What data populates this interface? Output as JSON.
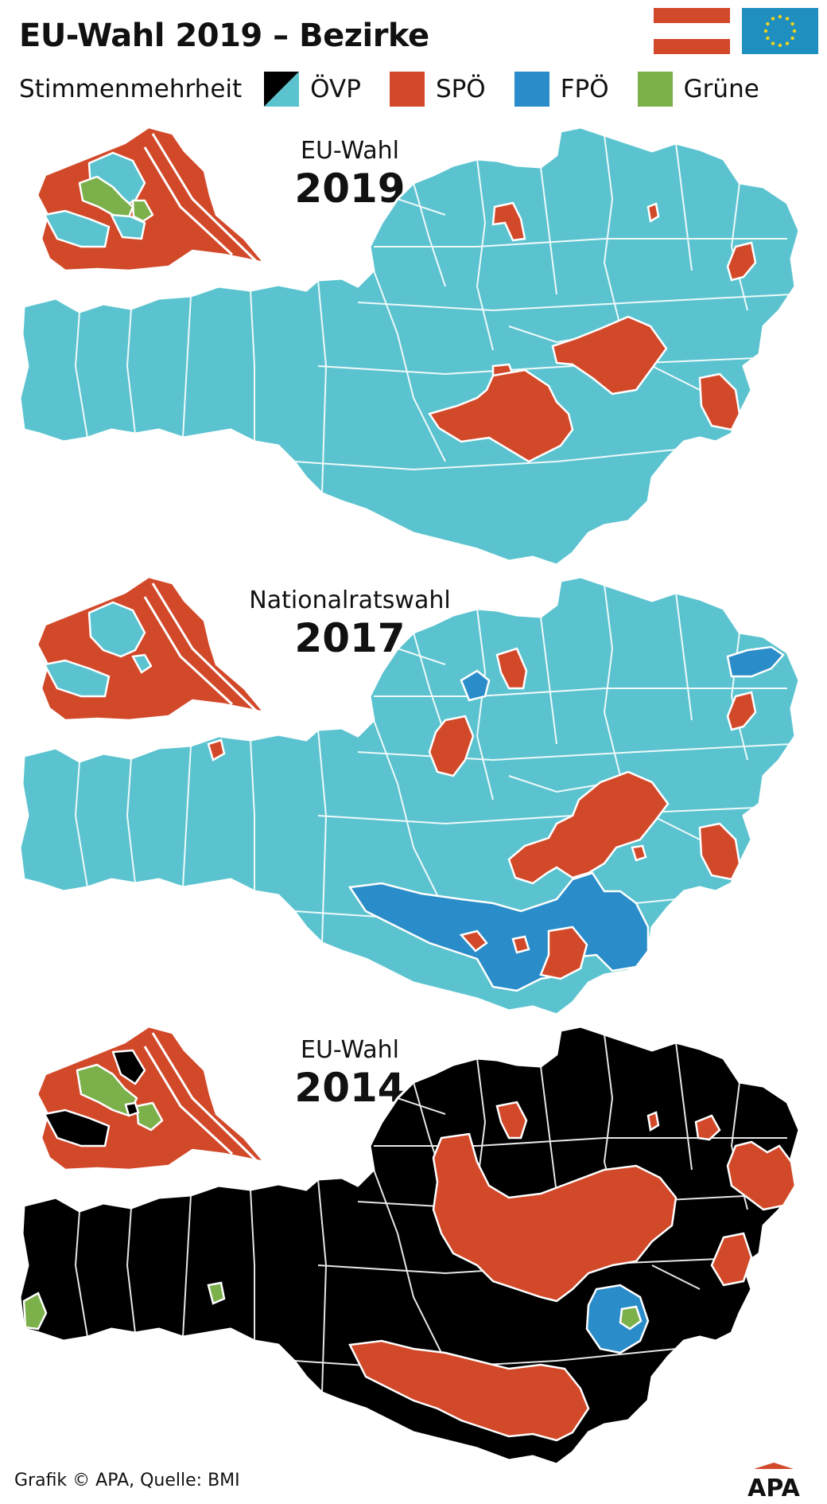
{
  "title": "EU-Wahl 2019 – Bezirke",
  "legend": {
    "label": "Stimmenmehrheit",
    "items": [
      {
        "name": "ÖVP",
        "color_2019": "#5bc3cf",
        "color_2014": "#000000"
      },
      {
        "name": "SPÖ",
        "color": "#d2492a"
      },
      {
        "name": "FPÖ",
        "color": "#2a8cc8"
      },
      {
        "name": "Grüne",
        "color": "#7bb04a"
      }
    ]
  },
  "colors": {
    "oevp_2019": "#5bc3cf",
    "oevp_2014": "#000000",
    "spoe": "#d2492a",
    "fpoe": "#2a8cc8",
    "gruene": "#7bb04a",
    "border": "#ffffff",
    "flag_red": "#d2492a",
    "eu_blue": "#1f8fbf",
    "eu_stars": "#f2d21b"
  },
  "panels": [
    {
      "type": "EU-Wahl",
      "year": "2019",
      "base": "oevp_2019"
    },
    {
      "type": "Nationalratswahl",
      "year": "2017",
      "base": "oevp_2019"
    },
    {
      "type": "EU-Wahl",
      "year": "2014",
      "base": "oevp_2014"
    }
  ],
  "footer": "Grafik © APA, Quelle: BMI",
  "logo_text": "APA",
  "icons": {
    "flag_austria": "flag-austria-icon",
    "flag_eu": "flag-eu-icon",
    "logo": "apa-logo-icon"
  }
}
